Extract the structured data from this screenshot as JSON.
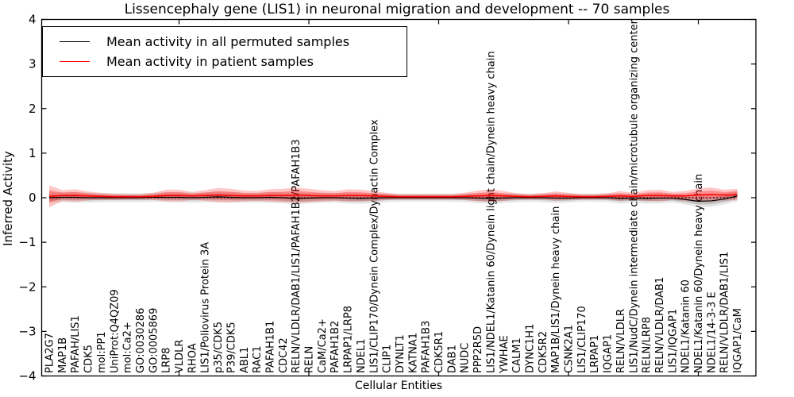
{
  "title": "Lissencephaly gene (LIS1) in neuronal migration and development -- 70 samples",
  "legend": {
    "entries": [
      {
        "label": "Mean activity in all permuted samples",
        "color": "#000000"
      },
      {
        "label": "Mean activity in patient samples",
        "color": "#ff0000"
      }
    ]
  },
  "axes": {
    "xlabel": "Cellular Entities",
    "ylabel": "Inferred Activity",
    "yticks": [
      4,
      3,
      2,
      1,
      0,
      -1,
      -2,
      -3,
      -4
    ],
    "ytick_labels": [
      "4",
      "3",
      "2",
      "1",
      "0",
      "−1",
      "−2",
      "−3",
      "−4"
    ],
    "xtick_indices": [
      10,
      20,
      30,
      40,
      50
    ]
  },
  "colors": {
    "permuted": "#000000",
    "patient": "#ff0000",
    "background": "#ffffff"
  },
  "chart_data": {
    "type": "line",
    "title": "Lissencephaly gene (LIS1) in neuronal migration and development -- 70 samples",
    "xlabel": "Cellular Entities",
    "ylabel": "Inferred Activity",
    "ylim": [
      -4,
      4
    ],
    "grid": false,
    "legend_position": "upper left",
    "zero_line": {
      "style": "dotted",
      "color": "#000000",
      "value": 0
    },
    "categories": [
      "PLA2G7",
      "MAP1B",
      "PAFAH/LIS1",
      "CDK5",
      "mol:PP1",
      "UniProt:Q4QZ09",
      "mol:Ca2+",
      "GO:0030286",
      "GO:0005869",
      "LRP8",
      "VLDLR",
      "RHOA",
      "LIS1/Poliovirus Protein 3A",
      "p35/CDK5",
      "P39/CDK5",
      "ABL1",
      "RAC1",
      "PAFAH1B1",
      "CDC42",
      "RELN/VLDLR/DAB1/LIS1/PAFAH1B2/PAFAH1B3",
      "RELN",
      "CaM/Ca2+",
      "PAFAH1B2",
      "LRPAP1/LRP8",
      "NDEL1",
      "LIS1/CLIP170/Dynein Complex/Dynactin Complex",
      "CLIP1",
      "DYNLT1",
      "KATNA1",
      "PAFAH1B3",
      "CDK5R1",
      "DAB1",
      "NUDC",
      "PPP2R5D",
      "LIS1/NDEL1/Katanin 60/Dynein light chain/Dynein heavy chain",
      "YWHAE",
      "CALM1",
      "DYNC1H1",
      "CDK5R2",
      "MAP1B/LIS1/Dynein heavy chain",
      "CSNK2A1",
      "LIS1/CLIP170",
      "LRPAP1",
      "IQGAP1",
      "RELN/VLDLR",
      "LIS1/NudC/Dynein intermediate chain/microtubule organizing center",
      "RELN/LRP8",
      "RELN/VLDLR/DAB1",
      "LIS1/IQGAP1",
      "NDEL1/Katanin 60",
      "NDEL1/Katanin 60/Dynein heavy chain",
      "NDEL1/14-3-3 E",
      "RELN/VLDLR/DAB1/LIS1",
      "IQGAP1/CaM"
    ],
    "series": [
      {
        "name": "Mean activity in all permuted samples",
        "color": "#000000",
        "values": [
          0.0,
          0.01,
          0.01,
          0.0,
          0.0,
          0.0,
          0.0,
          0.0,
          0.01,
          0.01,
          0.01,
          0.0,
          0.01,
          0.02,
          0.01,
          0.0,
          0.0,
          0.01,
          0.0,
          -0.02,
          -0.01,
          0.0,
          0.0,
          -0.01,
          -0.02,
          -0.01,
          0.0,
          0.0,
          0.0,
          0.0,
          0.0,
          0.0,
          0.0,
          -0.01,
          -0.02,
          -0.01,
          0.0,
          0.0,
          0.0,
          -0.01,
          -0.01,
          0.0,
          0.0,
          0.0,
          -0.02,
          -0.01,
          -0.02,
          -0.01,
          -0.01,
          -0.04,
          -0.08,
          -0.07,
          -0.03,
          0.04
        ]
      },
      {
        "name": "Mean activity in patient samples",
        "color": "#ff0000",
        "values": [
          0.03,
          0.05,
          0.05,
          0.04,
          0.03,
          0.02,
          0.02,
          0.02,
          0.03,
          0.05,
          0.05,
          0.04,
          0.05,
          0.06,
          0.05,
          0.04,
          0.04,
          0.05,
          0.05,
          0.06,
          0.05,
          0.04,
          0.04,
          0.05,
          0.05,
          0.04,
          0.03,
          0.02,
          0.02,
          0.02,
          0.02,
          0.02,
          0.03,
          0.04,
          0.05,
          0.04,
          0.03,
          0.02,
          0.03,
          0.04,
          0.03,
          0.02,
          0.02,
          0.03,
          0.04,
          0.03,
          0.05,
          0.05,
          0.04,
          0.04,
          0.06,
          0.07,
          0.06,
          0.07
        ]
      }
    ],
    "bands": [
      {
        "name": "permuted-spread",
        "center_series": 0,
        "color": "#000000",
        "opacity": 0.1,
        "half_widths": [
          0.12,
          0.11,
          0.12,
          0.11,
          0.1,
          0.1,
          0.1,
          0.1,
          0.1,
          0.11,
          0.12,
          0.11,
          0.11,
          0.12,
          0.12,
          0.11,
          0.11,
          0.12,
          0.12,
          0.13,
          0.12,
          0.11,
          0.11,
          0.12,
          0.12,
          0.11,
          0.1,
          0.09,
          0.09,
          0.09,
          0.09,
          0.09,
          0.1,
          0.11,
          0.12,
          0.11,
          0.1,
          0.09,
          0.1,
          0.11,
          0.1,
          0.09,
          0.09,
          0.1,
          0.11,
          0.1,
          0.11,
          0.12,
          0.1,
          0.11,
          0.13,
          0.14,
          0.12,
          0.12
        ]
      },
      {
        "name": "patient-spread",
        "center_series": 1,
        "color": "#ff0000",
        "opacity": 0.22,
        "half_widths": [
          0.25,
          0.12,
          0.14,
          0.1,
          0.08,
          0.07,
          0.06,
          0.06,
          0.08,
          0.13,
          0.13,
          0.09,
          0.12,
          0.16,
          0.15,
          0.12,
          0.11,
          0.14,
          0.15,
          0.17,
          0.15,
          0.13,
          0.11,
          0.14,
          0.13,
          0.11,
          0.08,
          0.06,
          0.06,
          0.06,
          0.06,
          0.06,
          0.08,
          0.12,
          0.14,
          0.11,
          0.07,
          0.06,
          0.07,
          0.1,
          0.08,
          0.06,
          0.06,
          0.07,
          0.11,
          0.08,
          0.12,
          0.13,
          0.09,
          0.11,
          0.15,
          0.16,
          0.12,
          0.13
        ]
      }
    ]
  }
}
